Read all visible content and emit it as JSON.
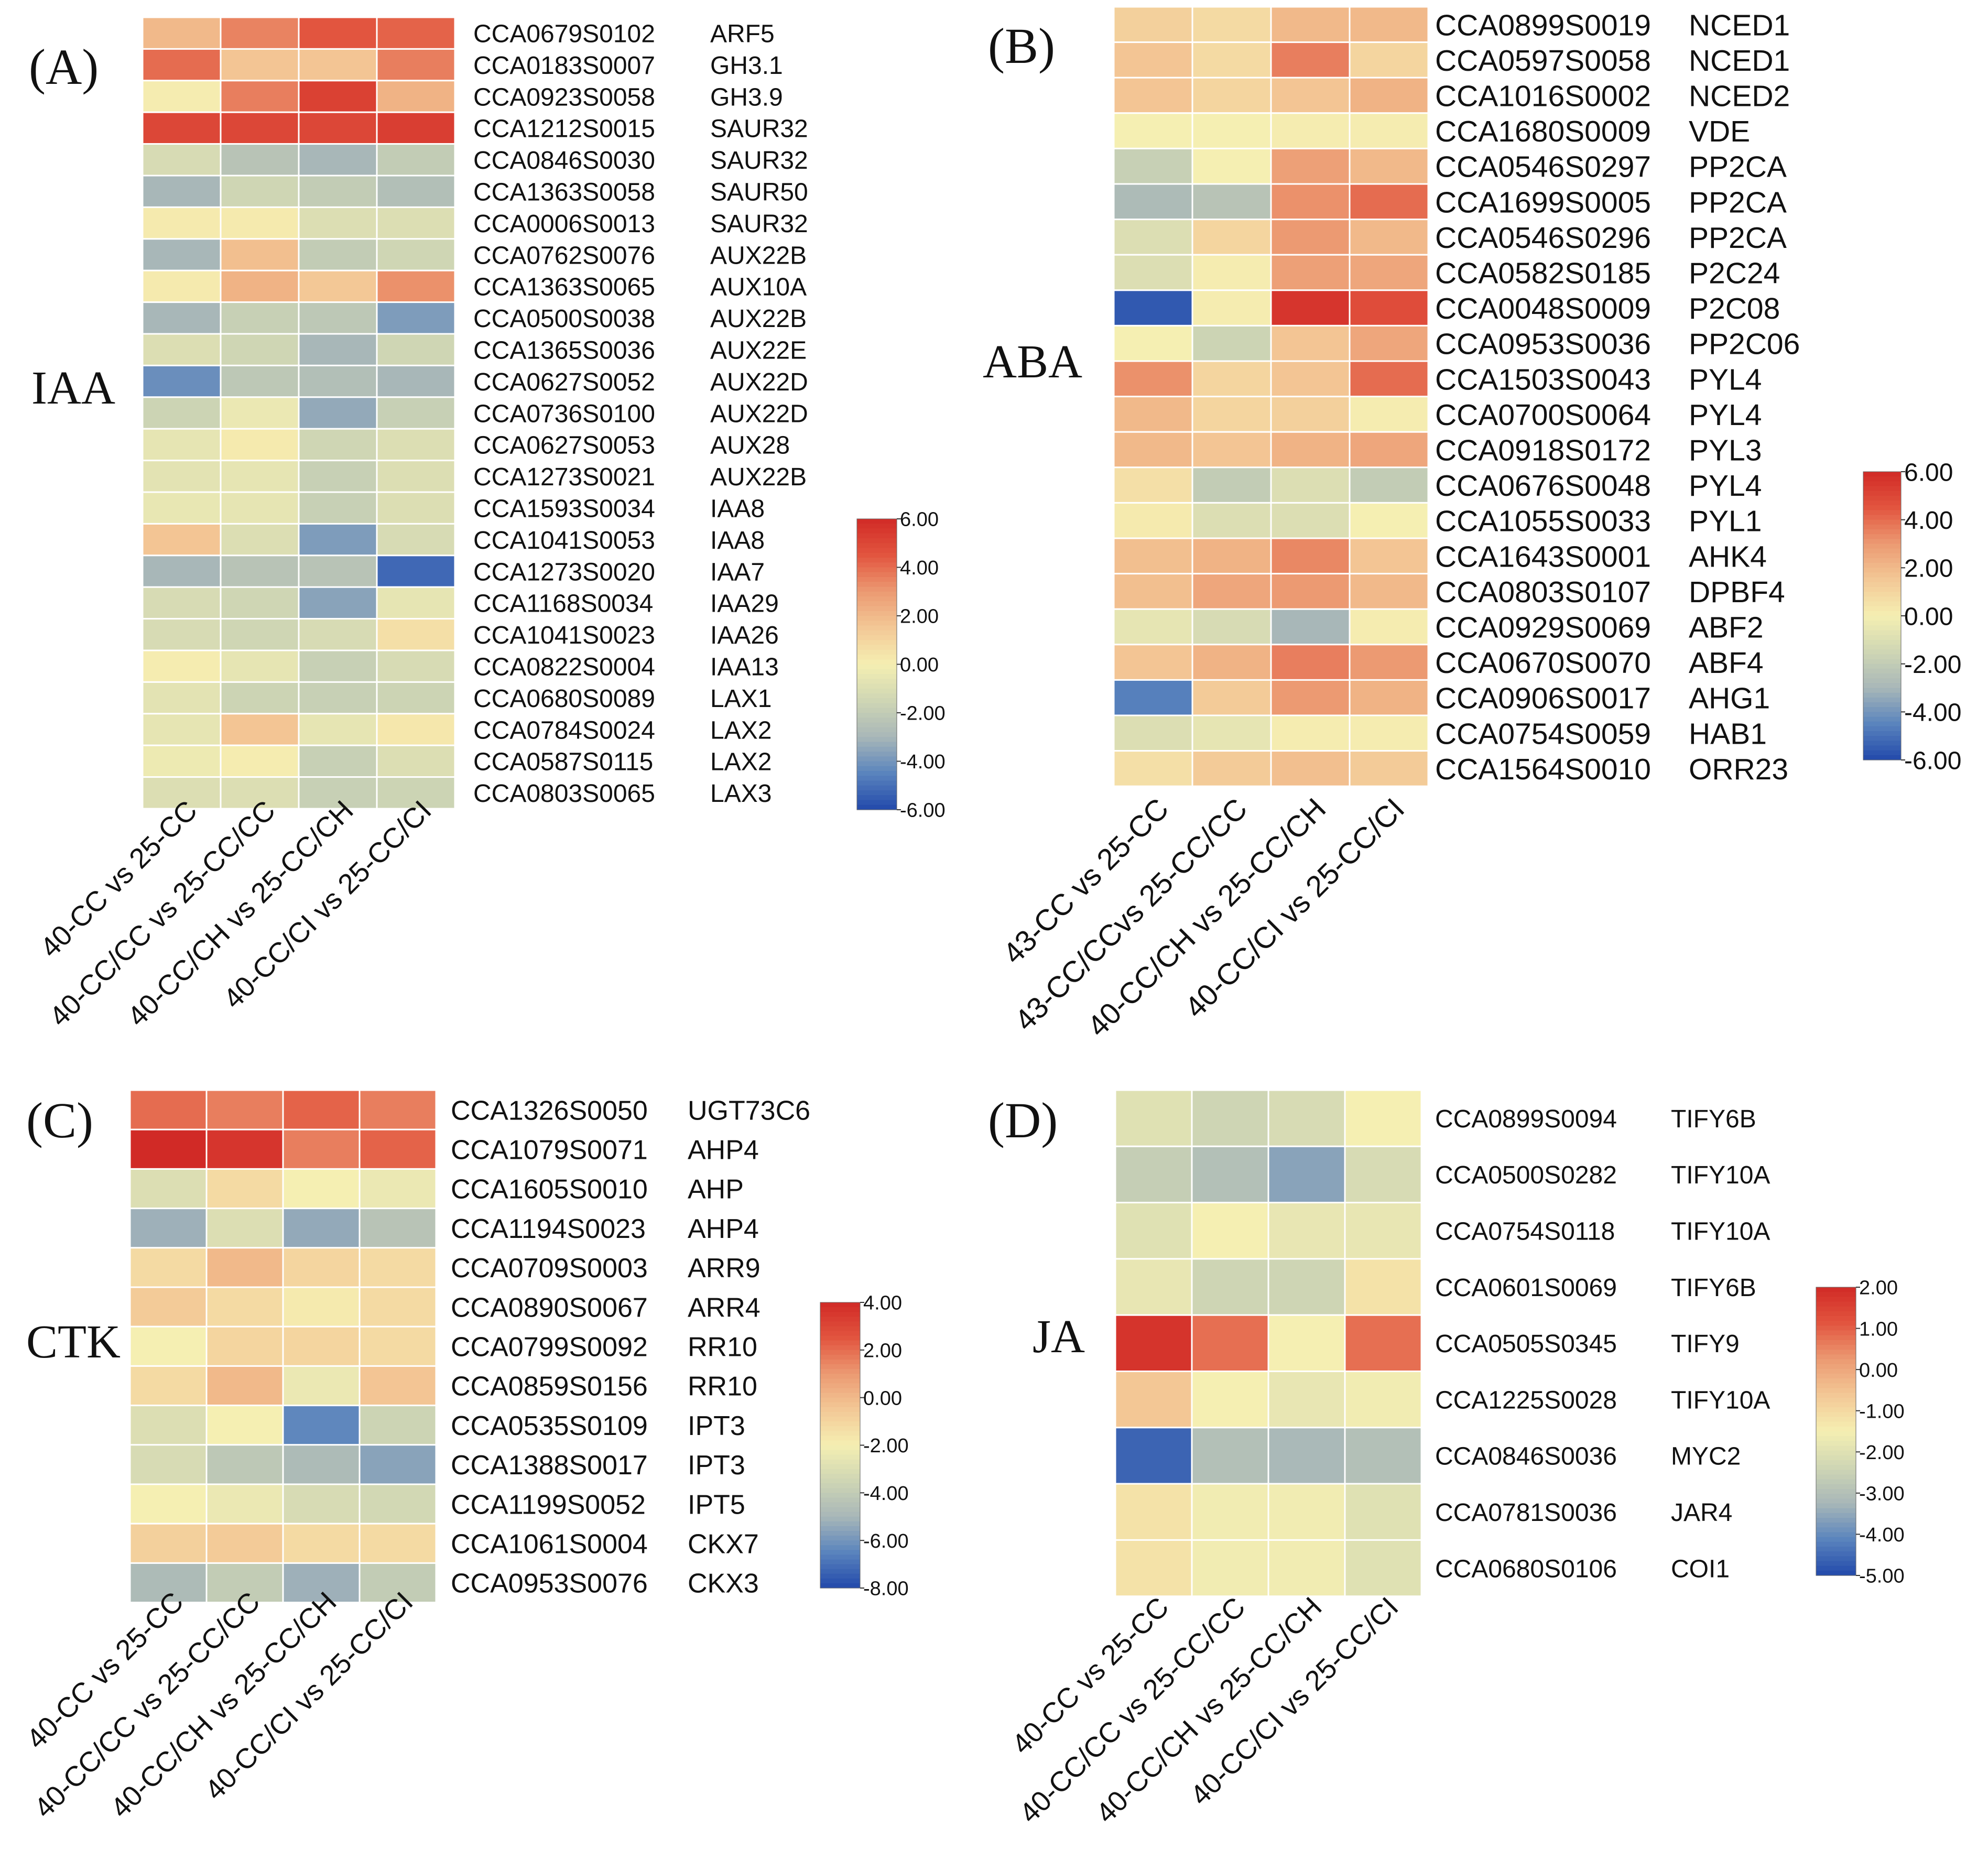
{
  "chart_data": [
    {
      "type": "heatmap",
      "panel_label": "(A)",
      "hormone": "IAA",
      "columns": [
        "40-CC vs 25-CC",
        "40-CC/CC vs 25-CC/CC",
        "40-CC/CH vs 25-CC/CH",
        "40-CC/CI vs 25-CC/CI"
      ],
      "rows": [
        {
          "id": "CCA0679S0102",
          "gene": "ARF5",
          "values": [
            2.0,
            3.5,
            4.5,
            4.2
          ]
        },
        {
          "id": "CCA0183S0007",
          "gene": "GH3.1",
          "values": [
            4.0,
            1.6,
            1.6,
            3.6
          ]
        },
        {
          "id": "CCA0923S0058",
          "gene": "GH3.9",
          "values": [
            0.1,
            3.6,
            5.2,
            2.2
          ]
        },
        {
          "id": "CCA1212S0015",
          "gene": "SAUR32",
          "values": [
            5.0,
            5.0,
            5.0,
            5.3
          ]
        },
        {
          "id": "CCA0846S0030",
          "gene": "SAUR32",
          "values": [
            -1.2,
            -2.4,
            -3.0,
            -2.0
          ]
        },
        {
          "id": "CCA1363S0058",
          "gene": "SAUR50",
          "values": [
            -3.0,
            -1.5,
            -2.0,
            -2.6
          ]
        },
        {
          "id": "CCA0006S0013",
          "gene": "SAUR32",
          "values": [
            0.2,
            0.2,
            -1.0,
            -1.0
          ]
        },
        {
          "id": "CCA0762S0076",
          "gene": "AUX22B",
          "values": [
            -3.0,
            1.8,
            -2.0,
            -1.5
          ]
        },
        {
          "id": "CCA1363S0065",
          "gene": "AUX10A",
          "values": [
            0.2,
            2.2,
            1.5,
            3.2
          ]
        },
        {
          "id": "CCA0500S0038",
          "gene": "AUX22B",
          "values": [
            -3.0,
            -1.8,
            -2.2,
            -3.8
          ]
        },
        {
          "id": "CCA1365S0036",
          "gene": "AUX22E",
          "values": [
            -1.0,
            -1.5,
            -3.0,
            -1.5
          ]
        },
        {
          "id": "CCA0627S0052",
          "gene": "AUX22D",
          "values": [
            -4.2,
            -2.2,
            -2.6,
            -3.0
          ]
        },
        {
          "id": "CCA0736S0100",
          "gene": "AUX22D",
          "values": [
            -1.6,
            -0.4,
            -3.4,
            -1.8
          ]
        },
        {
          "id": "CCA0627S0053",
          "gene": "AUX28",
          "values": [
            -0.6,
            0.2,
            -1.5,
            -1.0
          ]
        },
        {
          "id": "CCA1273S0021",
          "gene": "AUX22B",
          "values": [
            -0.7,
            -0.6,
            -1.8,
            -1.0
          ]
        },
        {
          "id": "CCA1593S0034",
          "gene": "IAA8",
          "values": [
            -0.5,
            -0.6,
            -1.8,
            -1.0
          ]
        },
        {
          "id": "CCA1041S0053",
          "gene": "IAA8",
          "values": [
            1.6,
            -1.0,
            -3.8,
            -1.2
          ]
        },
        {
          "id": "CCA1273S0020",
          "gene": "IAA7",
          "values": [
            -3.0,
            -2.4,
            -2.4,
            -5.2
          ]
        },
        {
          "id": "CCA1168S0034",
          "gene": "IAA29",
          "values": [
            -1.2,
            -1.5,
            -3.6,
            -0.6
          ]
        },
        {
          "id": "CCA1041S0023",
          "gene": "IAA26",
          "values": [
            -1.2,
            -1.5,
            -1.2,
            0.6
          ]
        },
        {
          "id": "CCA0822S0004",
          "gene": "IAA13",
          "values": [
            0.1,
            -0.6,
            -1.8,
            -1.2
          ]
        },
        {
          "id": "CCA0680S0089",
          "gene": "LAX1",
          "values": [
            -0.7,
            -1.6,
            -1.8,
            -1.6
          ]
        },
        {
          "id": "CCA0784S0024",
          "gene": "LAX2",
          "values": [
            -0.6,
            1.6,
            -0.6,
            0.3
          ]
        },
        {
          "id": "CCA0587S0115",
          "gene": "LAX2",
          "values": [
            -0.3,
            0.1,
            -1.8,
            -1.0
          ]
        },
        {
          "id": "CCA0803S0065",
          "gene": "LAX3",
          "values": [
            -1.0,
            -1.0,
            -1.8,
            -1.6
          ]
        }
      ],
      "scale": {
        "min": -6,
        "max": 6,
        "ticks": [
          "6.00",
          "4.00",
          "2.00",
          "0.00",
          "-2.00",
          "-4.00",
          "-6.00"
        ]
      }
    },
    {
      "type": "heatmap",
      "panel_label": "(B)",
      "hormone": "ABA",
      "columns": [
        "43-CC vs 25-CC",
        "43-CC/CCvs 25-CC/CC",
        "40-CC/CH vs 25-CC/CH",
        "40-CC/CI vs 25-CC/CI"
      ],
      "rows": [
        {
          "id": "CCA0899S0019",
          "gene": "NCED1",
          "values": [
            1.2,
            0.8,
            2.0,
            2.0
          ]
        },
        {
          "id": "CCA0597S0058",
          "gene": "NCED1",
          "values": [
            1.6,
            0.8,
            3.6,
            1.0
          ]
        },
        {
          "id": "CCA1016S0002",
          "gene": "NCED2",
          "values": [
            1.6,
            1.0,
            1.6,
            2.2
          ]
        },
        {
          "id": "CCA1680S0009",
          "gene": "VDE",
          "values": [
            0.0,
            0.0,
            0.1,
            0.1
          ]
        },
        {
          "id": "CCA0546S0297",
          "gene": "PP2CA",
          "values": [
            -1.8,
            0.0,
            2.8,
            2.0
          ]
        },
        {
          "id": "CCA1699S0005",
          "gene": "PP2CA",
          "values": [
            -2.8,
            -2.4,
            3.2,
            4.0
          ]
        },
        {
          "id": "CCA0546S0296",
          "gene": "PP2CA",
          "values": [
            -1.0,
            1.0,
            3.0,
            2.0
          ]
        },
        {
          "id": "CCA0582S0185",
          "gene": "P2C24",
          "values": [
            -1.0,
            0.1,
            2.8,
            2.6
          ]
        },
        {
          "id": "CCA0048S0009",
          "gene": "P2C08",
          "values": [
            -5.6,
            0.1,
            5.6,
            4.8
          ]
        },
        {
          "id": "CCA0953S0036",
          "gene": "PP2C06",
          "values": [
            0.0,
            -1.6,
            1.6,
            2.6
          ]
        },
        {
          "id": "CCA1503S0043",
          "gene": "PYL4",
          "values": [
            3.2,
            1.0,
            1.6,
            4.0
          ]
        },
        {
          "id": "CCA0700S0064",
          "gene": "PYL4",
          "values": [
            2.0,
            1.0,
            1.2,
            0.1
          ]
        },
        {
          "id": "CCA0918S0172",
          "gene": "PYL3",
          "values": [
            2.0,
            1.6,
            2.2,
            2.6
          ]
        },
        {
          "id": "CCA0676S0048",
          "gene": "PYL4",
          "values": [
            0.6,
            -2.0,
            -1.0,
            -2.0
          ]
        },
        {
          "id": "CCA1055S0033",
          "gene": "PYL1",
          "values": [
            0.2,
            -1.0,
            -1.0,
            0.0
          ]
        },
        {
          "id": "CCA1643S0001",
          "gene": "AHK4",
          "values": [
            1.8,
            2.2,
            3.4,
            1.6
          ]
        },
        {
          "id": "CCA0803S0107",
          "gene": "DPBF4",
          "values": [
            1.8,
            2.6,
            3.0,
            2.0
          ]
        },
        {
          "id": "CCA0929S0069",
          "gene": "ABF2",
          "values": [
            -0.6,
            -1.2,
            -3.0,
            0.1
          ]
        },
        {
          "id": "CCA0670S0070",
          "gene": "ABF4",
          "values": [
            1.6,
            2.2,
            3.6,
            3.0
          ]
        },
        {
          "id": "CCA0906S0017",
          "gene": "AHG1",
          "values": [
            -4.6,
            1.4,
            3.0,
            2.2
          ]
        },
        {
          "id": "CCA0754S0059",
          "gene": "HAB1",
          "values": [
            -1.0,
            -0.6,
            0.1,
            0.1
          ]
        },
        {
          "id": "CCA1564S0010",
          "gene": "ORR23",
          "values": [
            0.6,
            1.4,
            1.8,
            1.4
          ]
        }
      ],
      "scale": {
        "min": -6,
        "max": 6,
        "ticks": [
          "6.00",
          "4.00",
          "2.00",
          "0.00",
          "-2.00",
          "-4.00",
          "-6.00"
        ]
      }
    },
    {
      "type": "heatmap",
      "panel_label": "(C)",
      "hormone": "CTK",
      "columns": [
        "40-CC vs 25-CC",
        "40-CC/CC vs 25-CC/CC",
        "40-CC/CH vs 25-CC/CH",
        "40-CC/CI vs 25-CC/CI"
      ],
      "rows": [
        {
          "id": "CCA1326S0050",
          "gene": "UGT73C6",
          "values": [
            2.0,
            1.6,
            2.2,
            1.6
          ]
        },
        {
          "id": "CCA1079S0071",
          "gene": "AHP4",
          "values": [
            4.0,
            3.6,
            1.6,
            2.2
          ]
        },
        {
          "id": "CCA1605S0010",
          "gene": "AHP",
          "values": [
            -3.0,
            -1.2,
            -2.0,
            -2.4
          ]
        },
        {
          "id": "CCA1194S0023",
          "gene": "AHP4",
          "values": [
            -5.2,
            -3.0,
            -5.4,
            -4.4
          ]
        },
        {
          "id": "CCA0709S0003",
          "gene": "ARR9",
          "values": [
            -1.2,
            0.0,
            -1.0,
            -1.2
          ]
        },
        {
          "id": "CCA0890S0067",
          "gene": "ARR4",
          "values": [
            -0.6,
            -1.2,
            -1.8,
            -1.2
          ]
        },
        {
          "id": "CCA0799S0092",
          "gene": "RR10",
          "values": [
            -2.0,
            -1.0,
            -1.0,
            -1.2
          ]
        },
        {
          "id": "CCA0859S0156",
          "gene": "RR10",
          "values": [
            -1.2,
            0.0,
            -2.4,
            -0.4
          ]
        },
        {
          "id": "CCA0535S0109",
          "gene": "IPT3",
          "values": [
            -3.0,
            -2.0,
            -6.4,
            -3.6
          ]
        },
        {
          "id": "CCA1388S0017",
          "gene": "IPT3",
          "values": [
            -3.2,
            -4.2,
            -4.8,
            -5.6
          ]
        },
        {
          "id": "CCA1199S0052",
          "gene": "IPT5",
          "values": [
            -2.0,
            -2.4,
            -3.2,
            -3.4
          ]
        },
        {
          "id": "CCA1061S0004",
          "gene": "CKX7",
          "values": [
            -0.8,
            -0.6,
            -1.2,
            -1.2
          ]
        },
        {
          "id": "CCA0953S0076",
          "gene": "CKX3",
          "values": [
            -4.8,
            -4.0,
            -5.2,
            -4.0
          ]
        }
      ],
      "scale": {
        "min": -8,
        "max": 4,
        "ticks": [
          "4.00",
          "2.00",
          "0.00",
          "-2.00",
          "-4.00",
          "-6.00",
          "-8.00"
        ]
      }
    },
    {
      "type": "heatmap",
      "panel_label": "(D)",
      "hormone": "JA",
      "columns": [
        "40-CC vs 25-CC",
        "40-CC/CC vs 25-CC/CC",
        "40-CC/CH vs 25-CC/CH",
        "40-CC/CI vs 25-CC/CI"
      ],
      "rows": [
        {
          "id": "CCA0899S0094",
          "gene": "TIFY6B",
          "values": [
            -2.0,
            -2.4,
            -2.2,
            -1.5
          ]
        },
        {
          "id": "CCA0500S0282",
          "gene": "TIFY10A",
          "values": [
            -2.6,
            -3.0,
            -3.6,
            -2.2
          ]
        },
        {
          "id": "CCA0754S0118",
          "gene": "TIFY10A",
          "values": [
            -2.0,
            -1.5,
            -1.8,
            -1.8
          ]
        },
        {
          "id": "CCA0601S0069",
          "gene": "TIFY6B",
          "values": [
            -1.8,
            -2.4,
            -2.4,
            -1.2
          ]
        },
        {
          "id": "CCA0505S0345",
          "gene": "TIFY9",
          "values": [
            1.8,
            0.8,
            -1.5,
            0.8
          ]
        },
        {
          "id": "CCA1225S0028",
          "gene": "TIFY10A",
          "values": [
            -0.6,
            -1.5,
            -1.8,
            -1.6
          ]
        },
        {
          "id": "CCA0846S0036",
          "gene": "MYC2",
          "values": [
            -4.6,
            -3.0,
            -3.2,
            -3.0
          ]
        },
        {
          "id": "CCA0781S0036",
          "gene": "JAR4",
          "values": [
            -1.2,
            -1.6,
            -1.6,
            -2.0
          ]
        },
        {
          "id": "CCA0680S0106",
          "gene": "COI1",
          "values": [
            -1.2,
            -1.6,
            -1.6,
            -2.0
          ]
        }
      ],
      "scale": {
        "min": -5,
        "max": 2,
        "ticks": [
          "2.00",
          "1.00",
          "0.00",
          "-1.00",
          "-2.00",
          "-3.00",
          "-4.00",
          "-5.00"
        ]
      }
    }
  ],
  "colors": {
    "scale_stops": [
      "#2249ab",
      "#5a84bd",
      "#a8b7b8",
      "#cfd6b4",
      "#f5efb2",
      "#f3c896",
      "#ec9a72",
      "#e2553f",
      "#d12a26"
    ],
    "gap": "#ffffff",
    "text": "#111111"
  }
}
